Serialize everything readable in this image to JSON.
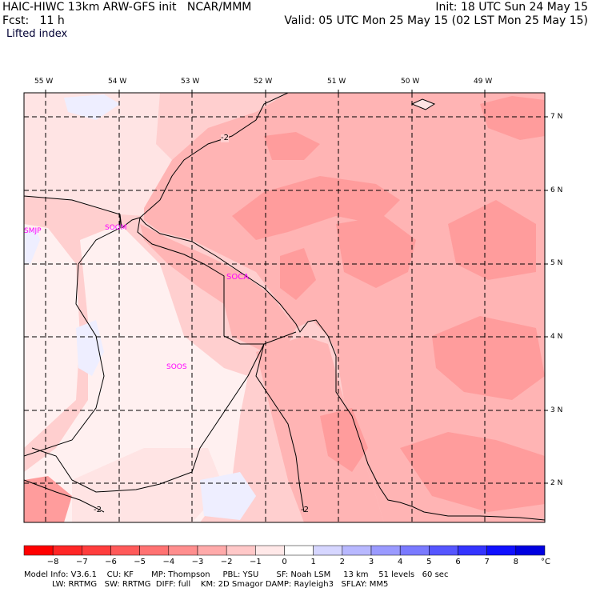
{
  "header": {
    "line1_left": "HAIC-HIWC 13km ARW-GFS init   NCAR/MMM",
    "line1_right": "Init: 18 UTC Sun 24 May 15",
    "line2_left": "Fcst:   11 h",
    "line2_right": "Valid: 05 UTC Mon 25 May 15 (02 LST Mon 25 May 15)",
    "line3": "Lifted index"
  },
  "map": {
    "lon_labels": [
      "55 W",
      "54 W",
      "53 W",
      "52 W",
      "51 W",
      "50 W",
      "49 W"
    ],
    "lat_labels": [
      "7 N",
      "6 N",
      "5 N",
      "4 N",
      "3 N",
      "2 N"
    ],
    "contour_labels": [
      "-2",
      "-2",
      "-2"
    ],
    "stations": [
      "SMJP",
      "SOGM",
      "SOCA",
      "SOOS"
    ],
    "colors": {
      "lt_minus1": "#ffe4e4",
      "lt_minus2": "#ffcfcf",
      "lt_minus3": "#ffabab",
      "lt_minus4": "#ff9696",
      "lt_minus5": "#ff8080",
      "zero_band": "#fff1f1",
      "pos_band": "#eeeeff",
      "station": "#ff00ff"
    }
  },
  "colorbar": {
    "labels": [
      "−8",
      "−7",
      "−6",
      "−5",
      "−4",
      "−3",
      "−2",
      "−1",
      "0",
      "1",
      "2",
      "3",
      "4",
      "5",
      "6",
      "7",
      "8"
    ],
    "unit": "°C",
    "colors": [
      "#ff0000",
      "#ff2626",
      "#ff3d3d",
      "#ff5a5a",
      "#ff7272",
      "#ff8e8e",
      "#ffaaaa",
      "#ffc8c8",
      "#ffe8e8",
      "#ffffff",
      "#d6d6ff",
      "#b8b8ff",
      "#9a9aff",
      "#7a7aff",
      "#5656ff",
      "#3434ff",
      "#1010ff",
      "#0000e0"
    ]
  },
  "footer": {
    "line1": "Model Info: V3.6.1    CU: KF       MP: Thompson     PBL: YSU       SF: Noah LSM     13 km    51 levels   60 sec",
    "line2": "           LW: RRTMG   SW: RRTMG  DIFF: full    KM: 2D Smagor DAMP: Rayleigh3   SFLAY: MM5"
  }
}
